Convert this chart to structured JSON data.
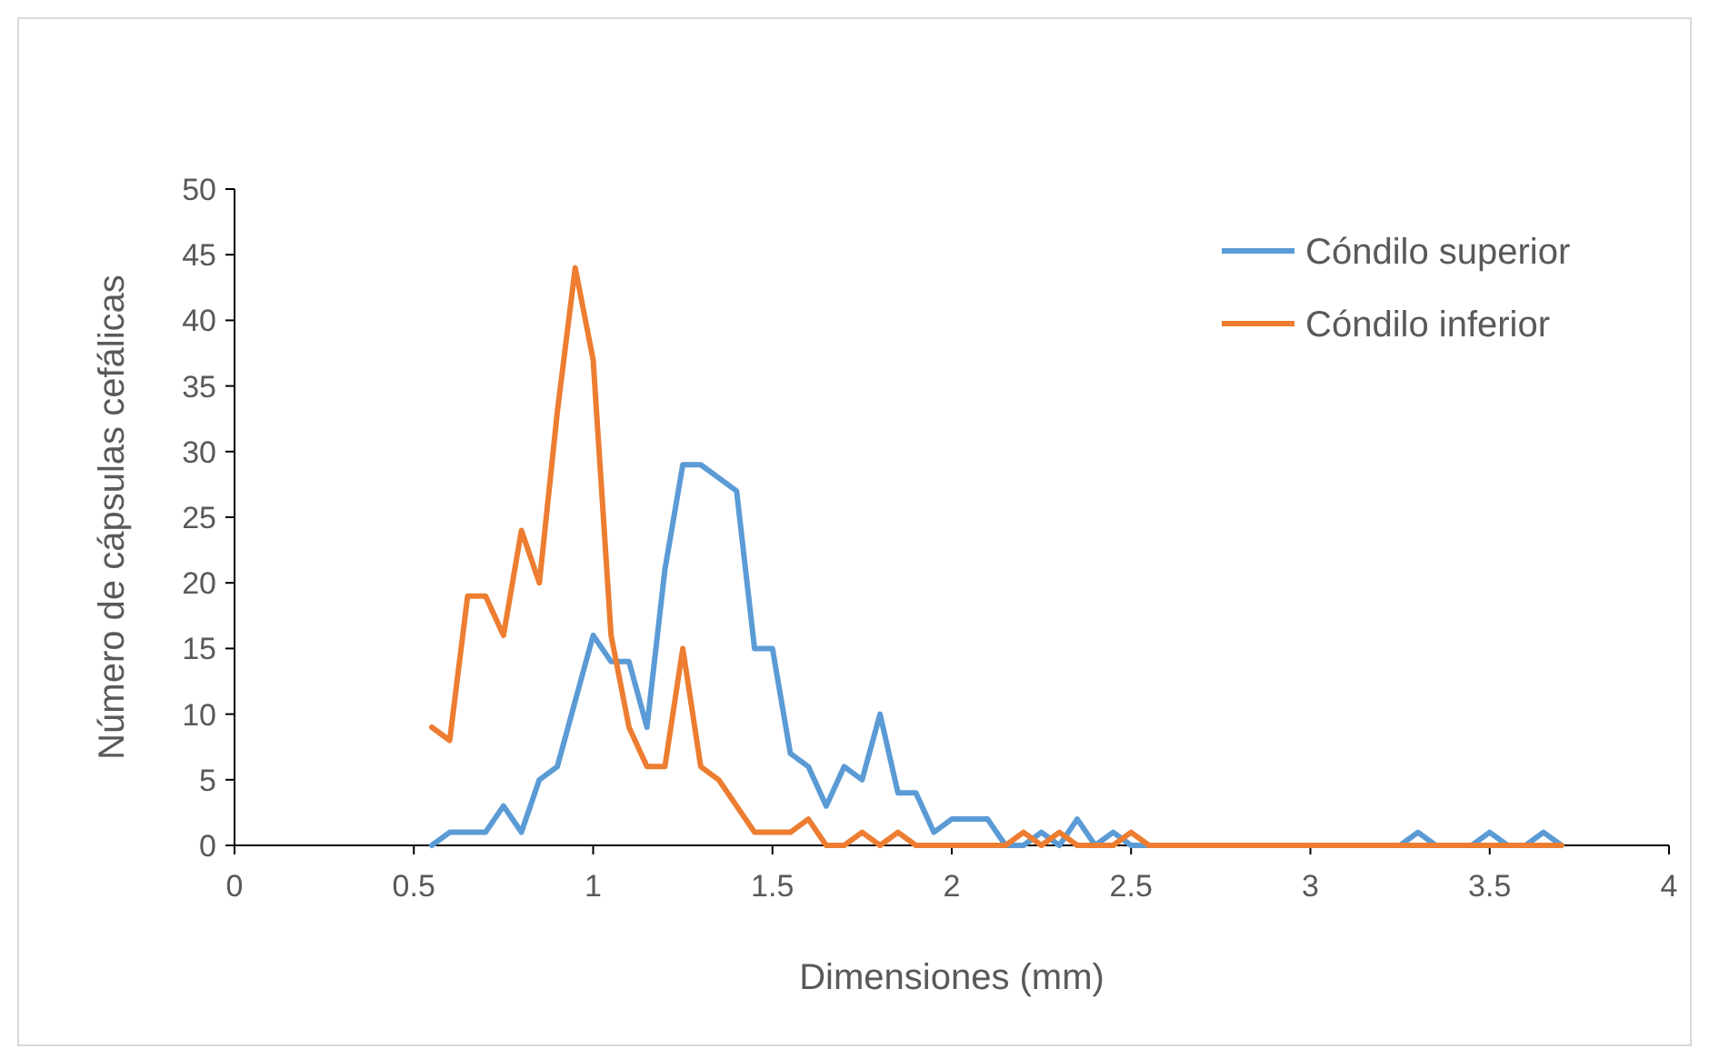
{
  "chart_data": {
    "type": "line",
    "xlabel": "Dimensiones (mm)",
    "ylabel": "Número de cápsulas cefálicas",
    "x": [
      0.55,
      0.6,
      0.65,
      0.7,
      0.75,
      0.8,
      0.85,
      0.9,
      0.95,
      1,
      1.05,
      1.1,
      1.15,
      1.2,
      1.25,
      1.3,
      1.35,
      1.4,
      1.45,
      1.5,
      1.55,
      1.6,
      1.65,
      1.7,
      1.75,
      1.8,
      1.85,
      1.9,
      1.95,
      2,
      2.05,
      2.1,
      2.15,
      2.2,
      2.25,
      2.3,
      2.35,
      2.4,
      2.45,
      2.5,
      2.55,
      2.6,
      2.65,
      2.7,
      2.75,
      2.8,
      2.85,
      2.9,
      2.95,
      3,
      3.05,
      3.1,
      3.15,
      3.2,
      3.25,
      3.3,
      3.35,
      3.4,
      3.45,
      3.5,
      3.55,
      3.6,
      3.65,
      3.7
    ],
    "series": [
      {
        "name": "Cóndilo superior",
        "color": "#5b9bd5",
        "values": [
          0,
          1,
          1,
          1,
          3,
          1,
          5,
          6,
          11,
          16,
          14,
          14,
          9,
          21,
          29,
          29,
          28,
          27,
          15,
          15,
          7,
          6,
          3,
          6,
          5,
          10,
          4,
          4,
          1,
          2,
          2,
          2,
          0,
          0,
          1,
          0,
          2,
          0,
          1,
          0,
          0,
          0,
          0,
          0,
          0,
          0,
          0,
          0,
          0,
          0,
          0,
          0,
          0,
          0,
          0,
          1,
          0,
          0,
          0,
          1,
          0,
          0,
          1,
          0
        ]
      },
      {
        "name": "Cóndilo inferior",
        "color": "#ed7d31",
        "values": [
          9,
          8,
          19,
          19,
          16,
          24,
          20,
          33,
          44,
          37,
          16,
          9,
          6,
          6,
          15,
          6,
          5,
          3,
          1,
          1,
          1,
          2,
          0,
          0,
          1,
          0,
          1,
          0,
          0,
          0,
          0,
          0,
          0,
          1,
          0,
          1,
          0,
          0,
          0,
          1,
          0,
          0,
          0,
          0,
          0,
          0,
          0,
          0,
          0,
          0,
          0,
          0,
          0,
          0,
          0,
          0,
          0,
          0,
          0,
          0,
          0,
          0,
          0,
          0
        ]
      }
    ],
    "xlim": [
      0,
      4
    ],
    "xticks": [
      0,
      0.5,
      1,
      1.5,
      2,
      2.5,
      3,
      3.5,
      4
    ],
    "ylim": [
      0,
      50
    ],
    "yticks": [
      0,
      5,
      10,
      15,
      20,
      25,
      30,
      35,
      40,
      45,
      50
    ],
    "legend": "top right",
    "marker": "none",
    "line_style": "solid"
  }
}
